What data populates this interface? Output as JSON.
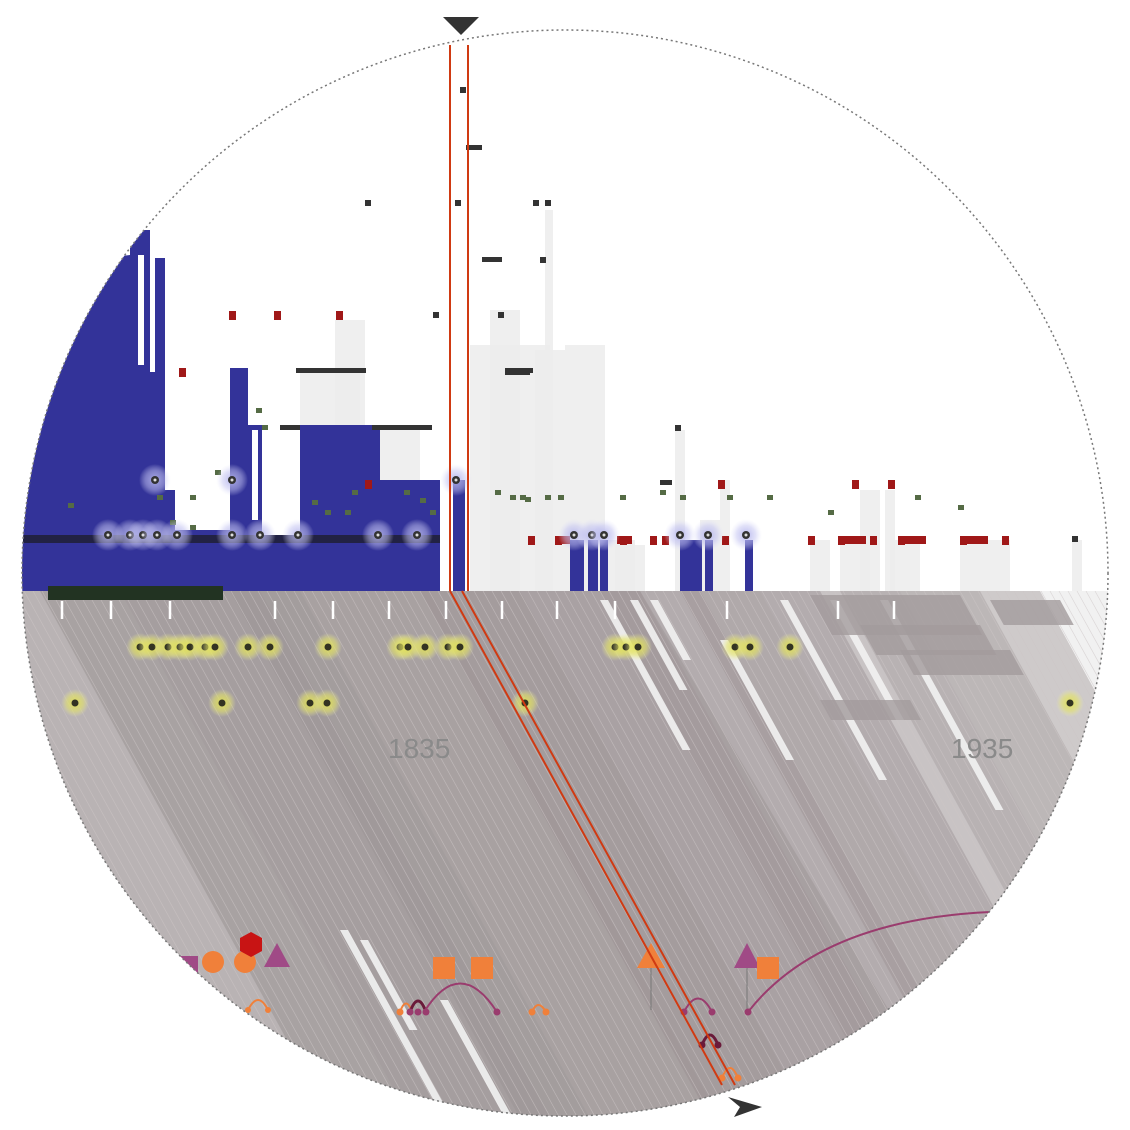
{
  "colors": {
    "background": "#ffffff",
    "lens_border": "#777777",
    "blue_bars": "#333399",
    "dark_marks": "#333333",
    "red_marks": "#a01818",
    "green_marks": "#556b45",
    "grey_bars_light": "#f0f0f0",
    "grey_band_dark": "#9b9394",
    "grey_band_mid": "#b3adae",
    "grey_band_light": "#cfc9ca",
    "axis_strip": "#223322",
    "cursor_line": "#d03a12",
    "yellow_glow": "#d8d84a",
    "blue_glow": "#9a9ae0",
    "orange_symbol": "#f0803a",
    "magenta_symbol": "#a04a86",
    "crimson_symbol": "#c81414",
    "arc_color": "#9a3c6e"
  },
  "markers": {
    "top": "triangle-down-marker",
    "bottom": "triangle-right-marker"
  },
  "year_labels": [
    {
      "name": "year-label-1835",
      "text": "1835"
    },
    {
      "name": "year-label-1935",
      "text": "1935"
    }
  ]
}
